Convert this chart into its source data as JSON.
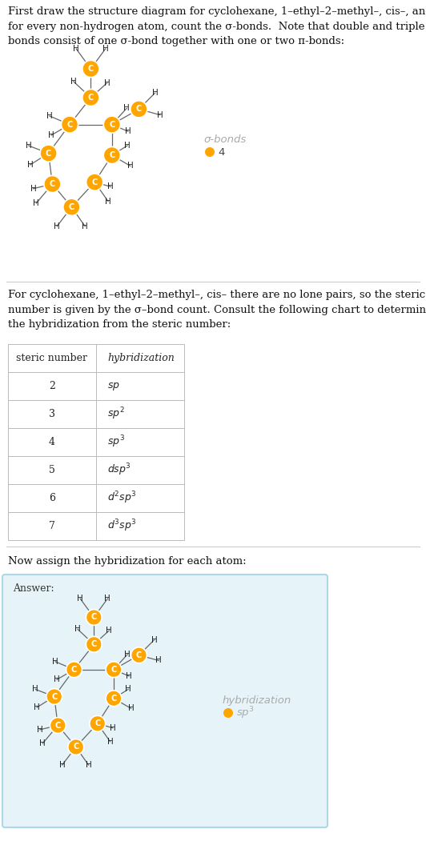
{
  "title_text": "First draw the structure diagram for cyclohexane, 1–ethyl–2–methyl–, cis–, and\nfor every non-hydrogen atom, count the σ-bonds.  Note that double and triple\nbonds consist of one σ-bond together with one or two π-bonds:",
  "section2_text": "For cyclohexane, 1–ethyl–2–methyl–, cis– there are no lone pairs, so the steric\nnumber is given by the σ–bond count. Consult the following chart to determine\nthe hybridization from the steric number:",
  "section3_text": "Now assign the hybridization for each atom:",
  "answer_label": "Answer:",
  "sigma_bonds_label": "σ-bonds",
  "sigma_value": "4",
  "hybridization_label": "hybridization",
  "hybridization_value": "sp³",
  "table_headers": [
    "steric number",
    "hybridization"
  ],
  "table_rows": [
    [
      "2",
      "sp"
    ],
    [
      "3",
      "sp²"
    ],
    [
      "4",
      "sp³"
    ],
    [
      "5",
      "dsp³"
    ],
    [
      "6",
      "d²sp³"
    ],
    [
      "7",
      "d³sp³"
    ]
  ],
  "atom_color": "#FFA500",
  "bond_color": "#666666",
  "H_color": "#222222",
  "bg_color": "#FFFFFF",
  "answer_bg": "#E6F4FA",
  "answer_border": "#ADD8E6",
  "sigma_legend_color": "#AAAAAA",
  "hyb_legend_color": "#AAAAAA"
}
